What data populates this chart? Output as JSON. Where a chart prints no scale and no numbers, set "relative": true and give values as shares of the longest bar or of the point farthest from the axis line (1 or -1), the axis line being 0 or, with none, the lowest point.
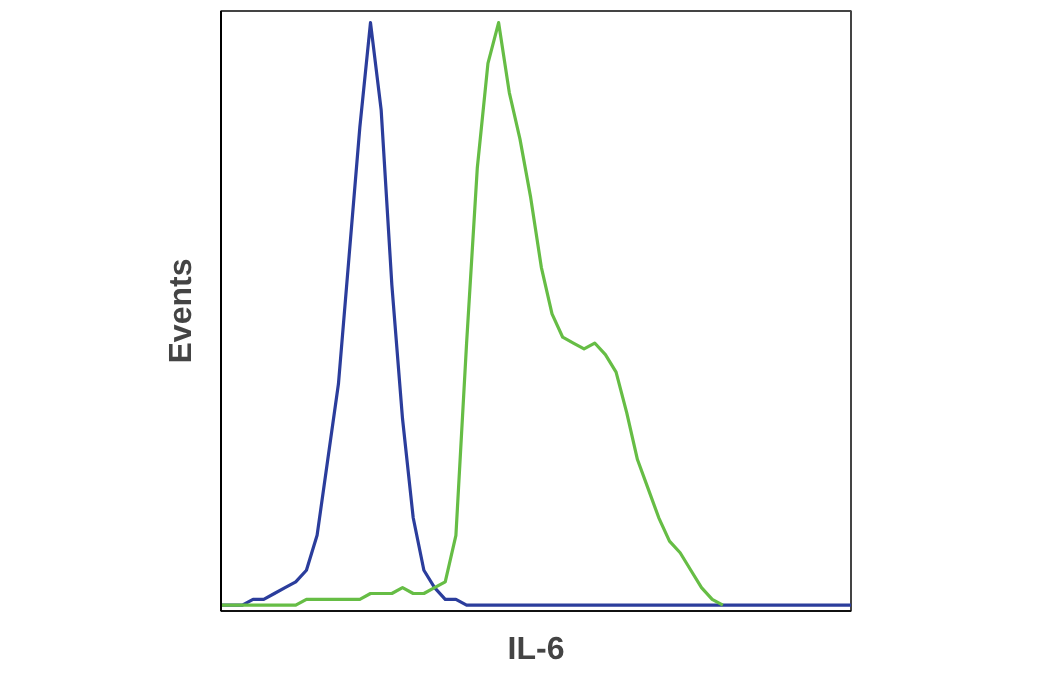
{
  "chart_data": {
    "type": "line",
    "xlabel": "IL-6",
    "ylabel": "Events",
    "relative": true,
    "grid": false,
    "categories": [
      null,
      null,
      null,
      null,
      null,
      null,
      null,
      null,
      null,
      null,
      null,
      null,
      null,
      null,
      null,
      null,
      null,
      null,
      null,
      null,
      null,
      null,
      null,
      null,
      null,
      null,
      null,
      null,
      null,
      null,
      null,
      null,
      null,
      null,
      null,
      null,
      null,
      null,
      null,
      null,
      null,
      null,
      null,
      null,
      null,
      null,
      null,
      null,
      null,
      null,
      null,
      null,
      null,
      null,
      null,
      null,
      null,
      null,
      null,
      null
    ],
    "series": [
      {
        "color": "#2b3d9c",
        "values": [
          0,
          0,
          0,
          0.01,
          0.01,
          0.02,
          0.03,
          0.04,
          0.06,
          0.12,
          0.25,
          0.38,
          0.6,
          0.82,
          1.0,
          0.85,
          0.55,
          0.32,
          0.15,
          0.06,
          0.03,
          0.01,
          0.01,
          0,
          0,
          0,
          0,
          0,
          0,
          0,
          0,
          0,
          0,
          0,
          0,
          0,
          0,
          0,
          0,
          0,
          0,
          0,
          0,
          0,
          0,
          0,
          0,
          0,
          0,
          0,
          0,
          0,
          0,
          0,
          0,
          0,
          0,
          0,
          0,
          0
        ]
      },
      {
        "color": "#66bd45",
        "values": [
          0,
          0,
          0,
          0,
          0,
          0,
          0,
          0,
          0.01,
          0.01,
          0.01,
          0.01,
          0.01,
          0.01,
          0.02,
          0.02,
          0.02,
          0.03,
          0.02,
          0.02,
          0.03,
          0.04,
          0.12,
          0.45,
          0.75,
          0.93,
          1.0,
          0.88,
          0.8,
          0.7,
          0.58,
          0.5,
          0.46,
          0.45,
          0.44,
          0.45,
          0.43,
          0.4,
          0.33,
          0.25,
          0.2,
          0.15,
          0.11,
          0.09,
          0.06,
          0.03,
          0.01,
          0,
          null,
          null,
          null,
          null,
          null,
          null,
          null,
          null,
          null,
          null,
          null,
          null
        ]
      }
    ]
  }
}
